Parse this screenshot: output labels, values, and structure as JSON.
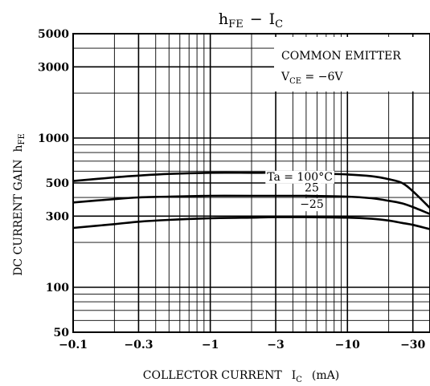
{
  "chart_data": {
    "type": "line",
    "title": {
      "main": "h",
      "main_sub": "FE",
      "dash": "−",
      "second": "I",
      "second_sub": "C"
    },
    "ylabel": {
      "main": "DC CURRENT GAIN",
      "symbol": "h",
      "symbol_sub": "FE"
    },
    "xlabel": {
      "main": "COLLECTOR CURRENT",
      "symbol": "I",
      "symbol_sub": "C",
      "unit": "(mA)"
    },
    "x_scale": "log",
    "y_scale": "log",
    "xlim": [
      -0.1,
      -40
    ],
    "ylim": [
      50,
      5000
    ],
    "x_tick_values": [
      0.1,
      0.3,
      1,
      3,
      10,
      30
    ],
    "x_tick_labels": [
      "−0.1",
      "−0.3",
      "−1",
      "−3",
      "−10",
      "−30"
    ],
    "y_tick_values": [
      50,
      100,
      300,
      500,
      1000,
      3000,
      5000
    ],
    "y_tick_labels": [
      "50",
      "100",
      "300",
      "500",
      "1000",
      "3000",
      "5000"
    ],
    "grid": true,
    "annotation": {
      "line1": "COMMON EMITTER",
      "line2_main": "V",
      "line2_sub": "CE",
      "line2_rest": " = −6V"
    },
    "series": [
      {
        "name": "Ta = 100°C",
        "x": [
          -0.1,
          -0.2,
          -0.3,
          -0.5,
          -1,
          -2,
          -3,
          -5,
          -10,
          -15,
          -20,
          -25,
          -30,
          -40
        ],
        "y": [
          515,
          545,
          560,
          575,
          585,
          585,
          585,
          580,
          570,
          555,
          530,
          500,
          440,
          340
        ]
      },
      {
        "name": "25",
        "x": [
          -0.1,
          -0.2,
          -0.3,
          -0.5,
          -1,
          -2,
          -3,
          -5,
          -10,
          -15,
          -20,
          -25,
          -30,
          -40
        ],
        "y": [
          370,
          390,
          400,
          405,
          410,
          410,
          410,
          410,
          405,
          395,
          380,
          365,
          345,
          310
        ]
      },
      {
        "name": "−25",
        "x": [
          -0.1,
          -0.2,
          -0.3,
          -0.5,
          -1,
          -2,
          -3,
          -5,
          -10,
          -15,
          -20,
          -25,
          -30,
          -40
        ],
        "y": [
          250,
          265,
          275,
          283,
          290,
          293,
          295,
          295,
          293,
          288,
          280,
          270,
          262,
          245
        ]
      }
    ],
    "series_label_values": [
      {
        "series": 0,
        "x": -4.5,
        "y": 520
      },
      {
        "series": 1,
        "x": -5.5,
        "y": 440
      },
      {
        "series": 2,
        "x": -5.5,
        "y": 340
      }
    ]
  }
}
